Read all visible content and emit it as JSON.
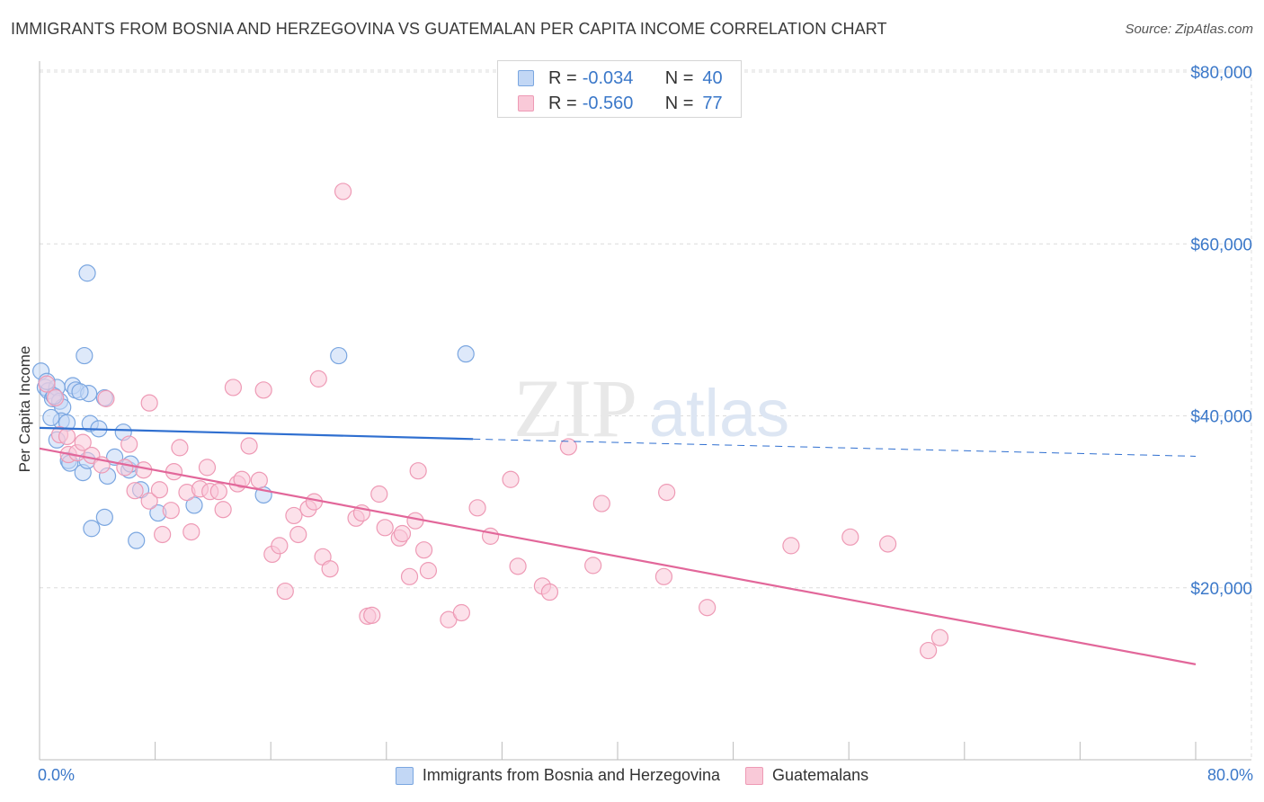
{
  "title": "IMMIGRANTS FROM BOSNIA AND HERZEGOVINA VS GUATEMALAN PER CAPITA INCOME CORRELATION CHART",
  "source": "Source: ZipAtlas.com",
  "watermark": {
    "zip": "ZIP",
    "atlas": "atlas"
  },
  "colors": {
    "blue": "#3b78c9",
    "blue_fill": "#c2d7f5",
    "blue_line": "#2f6fd0",
    "pink": "#e26a98",
    "pink_fill": "#f9c9d8",
    "pink_line": "#e2679a",
    "grid": "#dcdcdc",
    "axis_text": "#3b78c9"
  },
  "legend_top": {
    "rows": [
      {
        "r_label": "R =",
        "r_value": "-0.034",
        "n_label": "N =",
        "n_value": "40"
      },
      {
        "r_label": "R =",
        "r_value": "-0.560",
        "n_label": "N =",
        "n_value": "77"
      }
    ]
  },
  "legend_bottom": [
    "Immigrants from Bosnia and Herzegovina",
    "Guatemalans"
  ],
  "chart_data": {
    "type": "scatter",
    "title": "IMMIGRANTS FROM BOSNIA AND HERZEGOVINA VS GUATEMALAN PER CAPITA INCOME CORRELATION CHART",
    "xlabel": "",
    "ylabel": "Per Capita Income",
    "xlim": [
      0,
      80
    ],
    "ylim": [
      0,
      80000
    ],
    "x_tick_labels": [
      "0.0%",
      "80.0%"
    ],
    "y_ticks": [
      20000,
      40000,
      60000,
      80000
    ],
    "y_tick_labels": [
      "$20,000",
      "$40,000",
      "$60,000",
      "$80,000"
    ],
    "grid": true,
    "series": [
      {
        "name": "Immigrants from Bosnia and Herzegovina",
        "color": "#3b78c9",
        "r": -0.034,
        "n": 40,
        "trend": {
          "x0": 0,
          "y0": 38600,
          "x1": 30,
          "y1": 37300,
          "dash_x1": 80,
          "dash_y1": 35300
        },
        "points": [
          [
            0.1,
            45200
          ],
          [
            0.4,
            43300
          ],
          [
            0.6,
            42900
          ],
          [
            0.9,
            42000
          ],
          [
            1.2,
            43300
          ],
          [
            1.4,
            41700
          ],
          [
            1.6,
            41000
          ],
          [
            1.5,
            39400
          ],
          [
            1.9,
            39200
          ],
          [
            0.8,
            39800
          ],
          [
            1.2,
            37200
          ],
          [
            2.3,
            43500
          ],
          [
            2.5,
            43000
          ],
          [
            3.4,
            42600
          ],
          [
            4.5,
            42100
          ],
          [
            3.5,
            39100
          ],
          [
            4.1,
            38500
          ],
          [
            5.8,
            38100
          ],
          [
            2.0,
            34800
          ],
          [
            2.1,
            34500
          ],
          [
            3.0,
            33400
          ],
          [
            3.3,
            34800
          ],
          [
            4.7,
            33000
          ],
          [
            5.2,
            35200
          ],
          [
            6.2,
            33700
          ],
          [
            6.3,
            34400
          ],
          [
            7.0,
            31400
          ],
          [
            8.2,
            28700
          ],
          [
            10.7,
            29600
          ],
          [
            3.6,
            26900
          ],
          [
            4.5,
            28200
          ],
          [
            6.7,
            25500
          ],
          [
            3.1,
            47000
          ],
          [
            3.3,
            56600
          ],
          [
            20.7,
            47000
          ],
          [
            29.5,
            47200
          ],
          [
            15.5,
            30800
          ],
          [
            0.5,
            44000
          ],
          [
            1.0,
            42300
          ],
          [
            2.8,
            42800
          ]
        ]
      },
      {
        "name": "Guatemalans",
        "color": "#e26a98",
        "r": -0.56,
        "n": 77,
        "trend": {
          "x0": 0,
          "y0": 36200,
          "x1": 80,
          "y1": 11100
        },
        "points": [
          [
            0.5,
            43700
          ],
          [
            1.1,
            42100
          ],
          [
            1.4,
            37800
          ],
          [
            1.9,
            37600
          ],
          [
            2.0,
            35500
          ],
          [
            2.6,
            35700
          ],
          [
            3.0,
            36900
          ],
          [
            3.6,
            35400
          ],
          [
            4.3,
            34300
          ],
          [
            4.6,
            42000
          ],
          [
            5.9,
            34000
          ],
          [
            6.2,
            36700
          ],
          [
            6.6,
            31300
          ],
          [
            7.2,
            33700
          ],
          [
            7.6,
            30100
          ],
          [
            7.6,
            41500
          ],
          [
            8.3,
            31400
          ],
          [
            8.5,
            26200
          ],
          [
            9.1,
            29000
          ],
          [
            9.3,
            33500
          ],
          [
            9.7,
            36300
          ],
          [
            10.2,
            31100
          ],
          [
            10.5,
            26500
          ],
          [
            11.1,
            31500
          ],
          [
            11.6,
            34000
          ],
          [
            11.8,
            31200
          ],
          [
            12.4,
            31200
          ],
          [
            12.7,
            29100
          ],
          [
            13.4,
            43300
          ],
          [
            13.7,
            32100
          ],
          [
            14.0,
            32600
          ],
          [
            14.5,
            36500
          ],
          [
            15.2,
            32500
          ],
          [
            15.5,
            43000
          ],
          [
            16.1,
            23900
          ],
          [
            16.6,
            24900
          ],
          [
            17.0,
            19600
          ],
          [
            17.6,
            28400
          ],
          [
            17.9,
            26200
          ],
          [
            18.6,
            29200
          ],
          [
            19.0,
            30000
          ],
          [
            19.3,
            44300
          ],
          [
            19.6,
            23600
          ],
          [
            20.1,
            22200
          ],
          [
            21.0,
            66100
          ],
          [
            21.9,
            28100
          ],
          [
            22.3,
            28700
          ],
          [
            22.7,
            16700
          ],
          [
            23.0,
            16800
          ],
          [
            23.5,
            30900
          ],
          [
            23.9,
            27000
          ],
          [
            24.9,
            25800
          ],
          [
            25.1,
            26300
          ],
          [
            25.6,
            21300
          ],
          [
            26.0,
            27800
          ],
          [
            26.2,
            33600
          ],
          [
            26.6,
            24400
          ],
          [
            26.9,
            22000
          ],
          [
            28.3,
            16300
          ],
          [
            29.2,
            17100
          ],
          [
            30.3,
            29300
          ],
          [
            31.2,
            26000
          ],
          [
            32.6,
            32600
          ],
          [
            33.1,
            22500
          ],
          [
            34.8,
            20200
          ],
          [
            35.3,
            19500
          ],
          [
            36.6,
            36400
          ],
          [
            38.3,
            22600
          ],
          [
            38.9,
            29800
          ],
          [
            43.2,
            21300
          ],
          [
            43.4,
            31100
          ],
          [
            46.2,
            17700
          ],
          [
            52.0,
            24900
          ],
          [
            56.1,
            25900
          ],
          [
            58.7,
            25100
          ],
          [
            61.5,
            12700
          ],
          [
            62.3,
            14200
          ]
        ]
      }
    ]
  }
}
